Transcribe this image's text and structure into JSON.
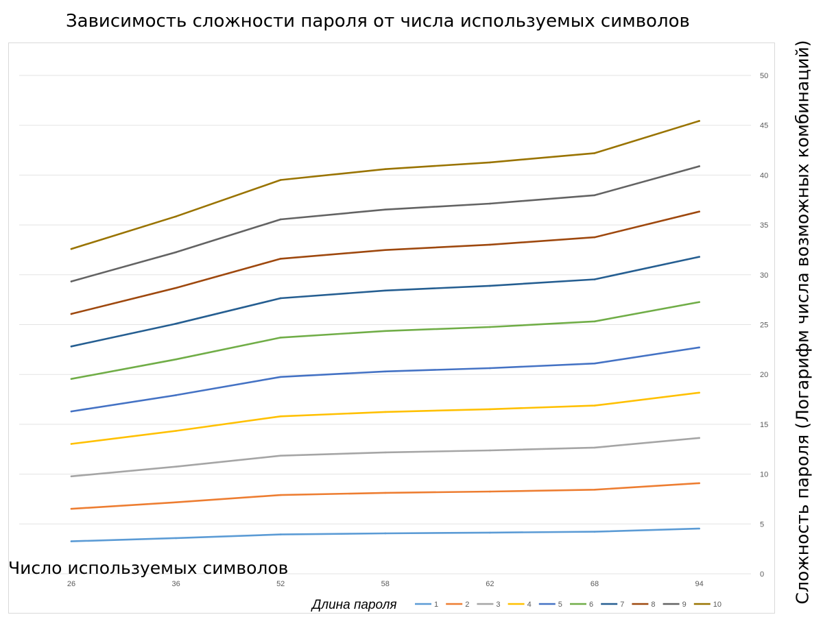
{
  "chart_data": {
    "type": "line",
    "title": "Зависимость сложности пароля от числа используемых символов",
    "xlabel": "Число используемых символов",
    "ylabel": "Сложность пароля (Логарифм числа возможных комбинаций)",
    "legend_title": "Длина пароля",
    "legend_position": "bottom",
    "grid": true,
    "y_axis_side": "right",
    "ylim": [
      0,
      50
    ],
    "yticks": [
      "0",
      "5",
      "10",
      "15",
      "20",
      "25",
      "30",
      "35",
      "40",
      "45",
      "50"
    ],
    "categories": [
      "26",
      "36",
      "52",
      "58",
      "62",
      "68",
      "94"
    ],
    "series": [
      {
        "name": "1",
        "color": "#5B9BD5",
        "values": [
          3.26,
          3.58,
          3.95,
          4.06,
          4.13,
          4.22,
          4.54
        ]
      },
      {
        "name": "2",
        "color": "#ED7D31",
        "values": [
          6.52,
          7.17,
          7.9,
          8.12,
          8.25,
          8.44,
          9.09
        ]
      },
      {
        "name": "3",
        "color": "#A5A5A5",
        "values": [
          9.78,
          10.75,
          11.85,
          12.18,
          12.38,
          12.66,
          13.63
        ]
      },
      {
        "name": "4",
        "color": "#FFC000",
        "values": [
          13.03,
          14.34,
          15.8,
          16.24,
          16.51,
          16.88,
          18.17
        ]
      },
      {
        "name": "5",
        "color": "#4472C4",
        "values": [
          16.29,
          17.92,
          19.75,
          20.3,
          20.63,
          21.1,
          22.71
        ]
      },
      {
        "name": "6",
        "color": "#70AD47",
        "values": [
          19.55,
          21.51,
          23.7,
          24.36,
          24.76,
          25.32,
          27.26
        ]
      },
      {
        "name": "7",
        "color": "#255E91",
        "values": [
          22.81,
          25.09,
          27.65,
          28.42,
          28.89,
          29.54,
          31.8
        ]
      },
      {
        "name": "8",
        "color": "#9E480E",
        "values": [
          26.07,
          28.68,
          31.61,
          32.48,
          33.02,
          33.76,
          36.34
        ]
      },
      {
        "name": "9",
        "color": "#636363",
        "values": [
          29.33,
          32.26,
          35.56,
          36.54,
          37.14,
          37.98,
          40.89
        ]
      },
      {
        "name": "10",
        "color": "#997300",
        "values": [
          32.59,
          35.85,
          39.51,
          40.6,
          41.27,
          42.2,
          45.43
        ]
      }
    ]
  }
}
